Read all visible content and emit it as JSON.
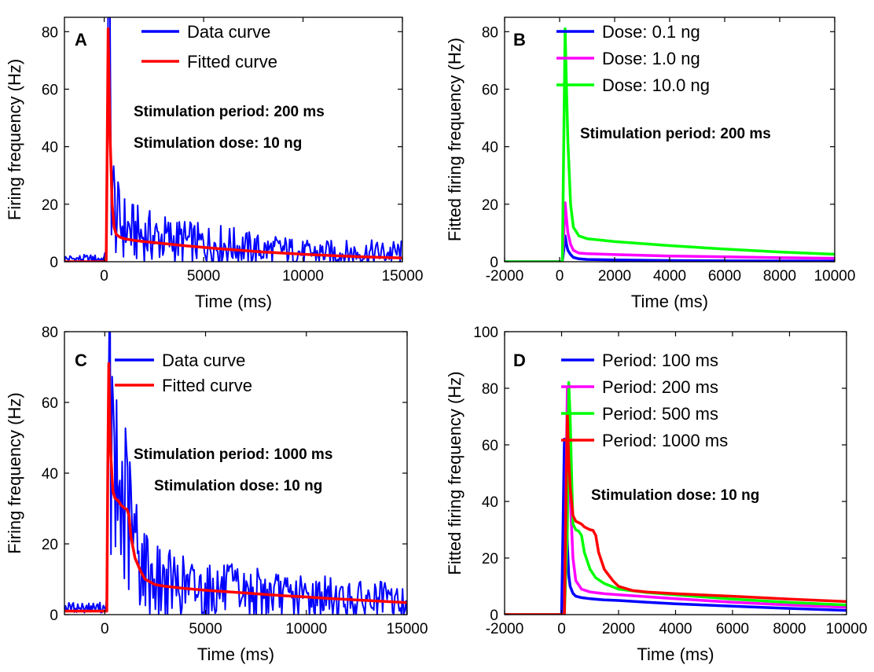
{
  "chart_data": [
    {
      "panel": "A",
      "type": "line",
      "xlabel": "Time (ms)",
      "ylabel": "Firing frequency (Hz)",
      "xlim": [
        -2000,
        15000
      ],
      "ylim": [
        0,
        85
      ],
      "xticks": [
        0,
        5000,
        10000,
        15000
      ],
      "yticks": [
        0,
        20,
        40,
        60,
        80
      ],
      "legend_position": "top-right",
      "annotations": [
        "Stimulation period: 200 ms",
        "Stimulation dose: 10 ng"
      ],
      "series": [
        {
          "name": "Data curve",
          "color": "#0000ff",
          "style": "noisy",
          "x": [
            -2000,
            0,
            100,
            200,
            250,
            300,
            400,
            500,
            700,
            1000,
            1500,
            2000,
            3000,
            4000,
            5000,
            6000,
            7000,
            8000,
            9000,
            10000,
            11000,
            12000,
            13000,
            14000,
            15000
          ],
          "y": [
            1,
            1,
            3,
            60,
            82,
            55,
            30,
            18,
            14,
            12,
            10,
            9,
            8,
            7,
            6,
            6,
            5,
            4,
            4,
            3,
            3,
            3,
            3,
            3,
            3
          ]
        },
        {
          "name": "Fitted curve",
          "color": "#ff0000",
          "x": [
            -2000,
            0,
            100,
            150,
            200,
            250,
            300,
            400,
            500,
            600,
            800,
            1000,
            1500,
            2000,
            3000,
            4000,
            5000,
            6000,
            7000,
            8000,
            9000,
            10000,
            11000,
            12000,
            13000,
            14000,
            15000
          ],
          "y": [
            0,
            0,
            0,
            40,
            81,
            60,
            42,
            20,
            12,
            9.5,
            8.5,
            8,
            7.4,
            7,
            6.3,
            5.6,
            5,
            4.4,
            3.9,
            3.4,
            3,
            2.6,
            2.3,
            2,
            1.7,
            1.5,
            1.3
          ]
        }
      ]
    },
    {
      "panel": "B",
      "type": "line",
      "xlabel": "Time (ms)",
      "ylabel": "Fitted firing frequency (Hz)",
      "xlim": [
        -2000,
        10000
      ],
      "ylim": [
        0,
        85
      ],
      "xticks": [
        -2000,
        0,
        2000,
        4000,
        6000,
        8000,
        10000
      ],
      "yticks": [
        0,
        20,
        40,
        60,
        80
      ],
      "legend_position": "top-right",
      "annotations": [
        "Stimulation period: 200 ms"
      ],
      "series": [
        {
          "name": "Dose: 0.1 ng",
          "color": "#0000ff",
          "x": [
            -2000,
            100,
            150,
            200,
            250,
            300,
            400,
            500,
            700,
            1000,
            2000,
            4000,
            6000,
            8000,
            10000
          ],
          "y": [
            0,
            0,
            4,
            9,
            6,
            4,
            2.5,
            1.5,
            1,
            0.8,
            0.6,
            0.4,
            0.3,
            0.25,
            0.2
          ]
        },
        {
          "name": "Dose: 1.0 ng",
          "color": "#ff00ff",
          "x": [
            -2000,
            100,
            150,
            200,
            250,
            300,
            400,
            500,
            700,
            1000,
            2000,
            4000,
            6000,
            8000,
            10000
          ],
          "y": [
            0,
            0,
            10,
            20.5,
            15,
            10,
            6,
            4,
            3,
            2.8,
            2.5,
            2,
            1.7,
            1.4,
            1.2
          ]
        },
        {
          "name": "Dose: 10.0 ng",
          "color": "#00ff00",
          "x": [
            -2000,
            100,
            150,
            200,
            250,
            300,
            400,
            500,
            700,
            1000,
            2000,
            4000,
            6000,
            8000,
            10000
          ],
          "y": [
            0,
            0,
            42,
            81,
            60,
            42,
            20,
            12,
            9,
            8,
            7,
            5.6,
            4.4,
            3.4,
            2.6
          ]
        }
      ]
    },
    {
      "panel": "C",
      "type": "line",
      "xlabel": "Time (ms)",
      "ylabel": "Firing frequency (Hz)",
      "xlim": [
        -2000,
        15000
      ],
      "ylim": [
        0,
        80
      ],
      "xticks": [
        0,
        5000,
        10000,
        15000
      ],
      "yticks": [
        0,
        20,
        40,
        60,
        80
      ],
      "legend_position": "top-right",
      "annotations": [
        "Stimulation period: 1000 ms",
        "Stimulation dose: 10 ng"
      ],
      "series": [
        {
          "name": "Data curve",
          "color": "#0000ff",
          "style": "noisy",
          "x": [
            -2000,
            0,
            100,
            200,
            250,
            300,
            400,
            600,
            800,
            1000,
            1200,
            1500,
            2000,
            2500,
            3000,
            4000,
            5000,
            6000,
            7000,
            8000,
            9000,
            10000,
            11000,
            12000,
            13000,
            14000,
            15000
          ],
          "y": [
            2,
            2,
            4,
            40,
            70,
            55,
            38,
            33,
            32,
            30,
            26,
            20,
            13,
            10,
            9,
            8,
            7,
            7,
            6,
            6,
            5,
            5,
            5,
            4,
            4,
            4,
            3
          ]
        },
        {
          "name": "Fitted curve",
          "color": "#ff0000",
          "x": [
            -2000,
            0,
            100,
            150,
            200,
            250,
            300,
            400,
            500,
            600,
            700,
            800,
            900,
            1000,
            1100,
            1200,
            1300,
            1500,
            1800,
            2000,
            2500,
            3000,
            4000,
            5000,
            6000,
            7000,
            8000,
            9000,
            10000,
            11000,
            12000,
            13000,
            14000,
            15000
          ],
          "y": [
            1,
            1,
            1,
            40,
            71,
            55,
            45,
            35,
            33,
            32.5,
            32,
            31,
            30.5,
            30,
            29.8,
            28,
            22,
            16,
            12,
            10,
            8.5,
            8,
            7.4,
            6.9,
            6.5,
            6.1,
            5.7,
            5.3,
            5,
            4.6,
            4.3,
            4,
            3.7,
            3.4
          ]
        }
      ]
    },
    {
      "panel": "D",
      "type": "line",
      "xlabel": "Time (ms)",
      "ylabel": "Fitted firing frequency (Hz)",
      "xlim": [
        -2000,
        10000
      ],
      "ylim": [
        0,
        100
      ],
      "xticks": [
        -2000,
        0,
        2000,
        4000,
        6000,
        8000,
        10000
      ],
      "yticks": [
        0,
        20,
        40,
        60,
        80,
        100
      ],
      "legend_position": "top-right",
      "annotations": [
        "Stimulation dose: 10 ng"
      ],
      "series": [
        {
          "name": "Period: 100 ms",
          "color": "#0000ff",
          "x": [
            -2000,
            0,
            50,
            100,
            150,
            200,
            250,
            300,
            400,
            500,
            700,
            1000,
            1500,
            2000,
            3000,
            4000,
            6000,
            8000,
            10000
          ],
          "y": [
            0,
            0,
            30,
            62,
            45,
            25,
            14,
            10,
            7.5,
            6.5,
            6,
            5.6,
            5.2,
            5,
            4.4,
            3.8,
            3,
            2.2,
            1.5
          ]
        },
        {
          "name": "Period: 200 ms",
          "color": "#ff00ff",
          "x": [
            -2000,
            100,
            150,
            200,
            250,
            300,
            400,
            500,
            700,
            1000,
            1500,
            2000,
            3000,
            4000,
            6000,
            8000,
            10000
          ],
          "y": [
            0,
            0,
            40,
            80,
            60,
            42,
            20,
            12,
            9,
            8,
            7.4,
            7,
            6.3,
            5.6,
            4.4,
            3.4,
            2.6
          ]
        },
        {
          "name": "Period: 500 ms",
          "color": "#00ff00",
          "x": [
            -2000,
            100,
            200,
            250,
            300,
            350,
            400,
            500,
            600,
            700,
            800,
            1000,
            1200,
            1500,
            2000,
            3000,
            4000,
            6000,
            8000,
            10000
          ],
          "y": [
            0,
            0,
            30,
            82,
            70,
            50,
            32,
            30,
            29.5,
            28,
            22,
            16,
            13,
            11,
            9,
            7.8,
            7,
            5.5,
            4.3,
            3.4
          ]
        },
        {
          "name": "Period: 1000 ms",
          "color": "#ff0000",
          "x": [
            -2000,
            0,
            100,
            150,
            200,
            250,
            300,
            400,
            500,
            600,
            700,
            800,
            900,
            1000,
            1100,
            1200,
            1300,
            1500,
            1800,
            2000,
            2500,
            3000,
            4000,
            6000,
            8000,
            10000
          ],
          "y": [
            0,
            0,
            0,
            35,
            71,
            55,
            45,
            35,
            33,
            32.5,
            32,
            31,
            30.5,
            30,
            29.8,
            28,
            22,
            16,
            12,
            10,
            8.5,
            8,
            7.4,
            6.5,
            5.5,
            4.6
          ]
        }
      ]
    }
  ]
}
